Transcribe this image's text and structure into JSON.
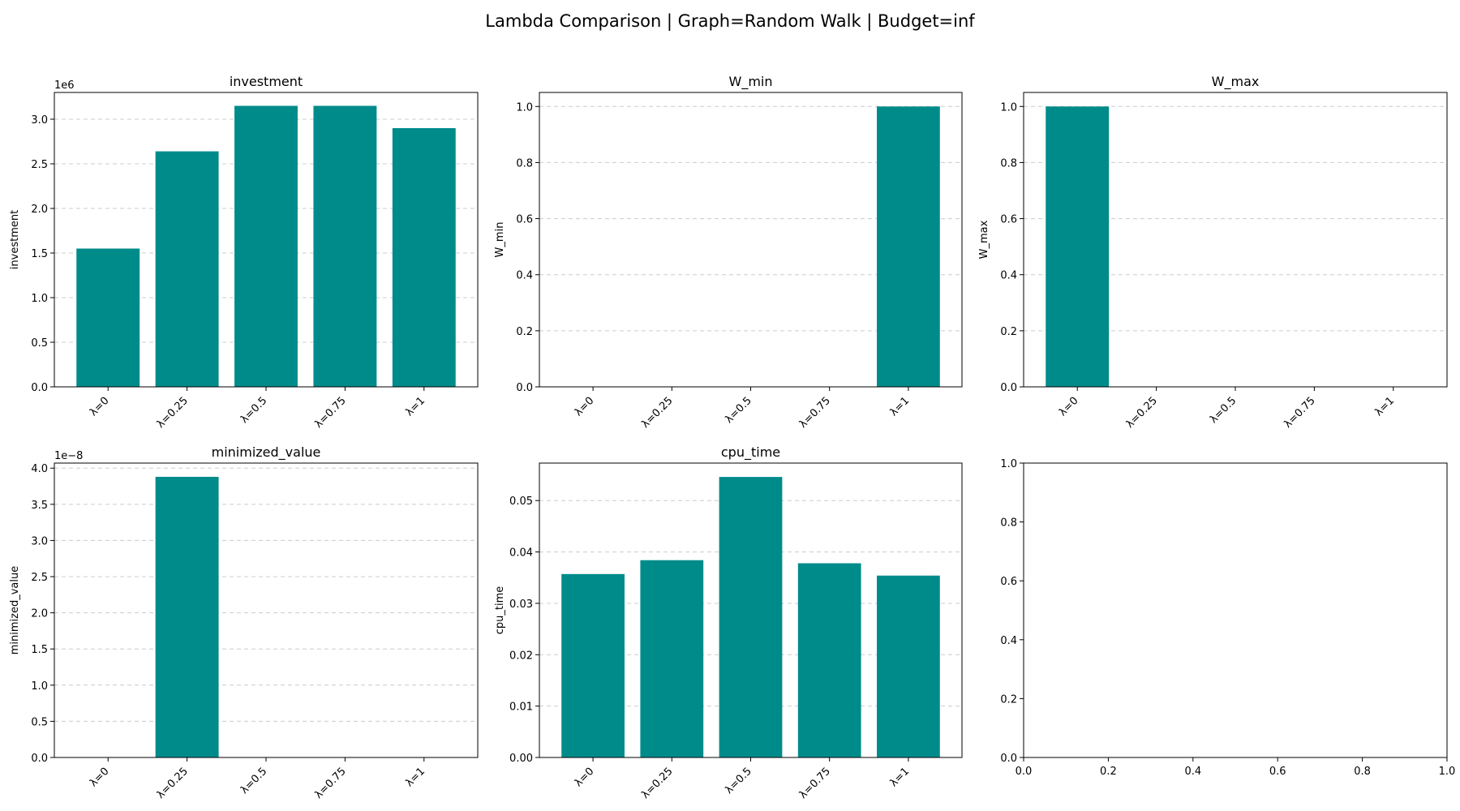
{
  "suptitle": "Lambda Comparison | Graph=Random Walk | Budget=inf",
  "colors": {
    "bar": "#008b8b",
    "grid": "#cccccc",
    "axis": "#000000"
  },
  "chart_data": [
    {
      "type": "bar",
      "title": "investment",
      "ylabel": "investment",
      "xlabel": "",
      "categories": [
        "λ=0",
        "λ=0.25",
        "λ=0.5",
        "λ=0.75",
        "λ=1"
      ],
      "values": [
        1550000,
        2640000,
        3150000,
        3150000,
        2900000
      ],
      "ylim": [
        0,
        3300000
      ],
      "yticks": [
        0,
        0.5,
        1.0,
        1.5,
        2.0,
        2.5,
        3.0
      ],
      "ytick_labels": [
        "0.0",
        "0.5",
        "1.0",
        "1.5",
        "2.0",
        "2.5",
        "3.0"
      ],
      "y_scale_label": "1e6",
      "y_multiplier": 1000000,
      "grid": "y-dashed"
    },
    {
      "type": "bar",
      "title": "W_min",
      "ylabel": "W_min",
      "xlabel": "",
      "categories": [
        "λ=0",
        "λ=0.25",
        "λ=0.5",
        "λ=0.75",
        "λ=1"
      ],
      "values": [
        0,
        0,
        0,
        0,
        1.0
      ],
      "ylim": [
        0,
        1.05
      ],
      "yticks": [
        0,
        0.2,
        0.4,
        0.6,
        0.8,
        1.0
      ],
      "ytick_labels": [
        "0.0",
        "0.2",
        "0.4",
        "0.6",
        "0.8",
        "1.0"
      ],
      "y_multiplier": 1,
      "grid": "y-dashed"
    },
    {
      "type": "bar",
      "title": "W_max",
      "ylabel": "W_max",
      "xlabel": "",
      "categories": [
        "λ=0",
        "λ=0.25",
        "λ=0.5",
        "λ=0.75",
        "λ=1"
      ],
      "values": [
        1.0,
        0,
        0,
        0,
        0
      ],
      "ylim": [
        0,
        1.05
      ],
      "yticks": [
        0,
        0.2,
        0.4,
        0.6,
        0.8,
        1.0
      ],
      "ytick_labels": [
        "0.0",
        "0.2",
        "0.4",
        "0.6",
        "0.8",
        "1.0"
      ],
      "y_multiplier": 1,
      "grid": "y-dashed"
    },
    {
      "type": "bar",
      "title": "minimized_value",
      "ylabel": "minimized_value",
      "xlabel": "",
      "categories": [
        "λ=0",
        "λ=0.25",
        "λ=0.5",
        "λ=0.75",
        "λ=1"
      ],
      "values": [
        0,
        3.88e-08,
        0,
        0,
        0
      ],
      "ylim": [
        0,
        4.07e-08
      ],
      "yticks": [
        0,
        0.5,
        1.0,
        1.5,
        2.0,
        2.5,
        3.0,
        3.5,
        4.0
      ],
      "ytick_labels": [
        "0.0",
        "0.5",
        "1.0",
        "1.5",
        "2.0",
        "2.5",
        "3.0",
        "3.5",
        "4.0"
      ],
      "y_scale_label": "1e−8",
      "y_multiplier": 1e-08,
      "grid": "y-dashed"
    },
    {
      "type": "bar",
      "title": "cpu_time",
      "ylabel": "cpu_time",
      "xlabel": "",
      "categories": [
        "λ=0",
        "λ=0.25",
        "λ=0.5",
        "λ=0.75",
        "λ=1"
      ],
      "values": [
        0.0357,
        0.0384,
        0.0546,
        0.0378,
        0.0354
      ],
      "ylim": [
        0,
        0.0573
      ],
      "yticks": [
        0,
        0.01,
        0.02,
        0.03,
        0.04,
        0.05
      ],
      "ytick_labels": [
        "0.00",
        "0.01",
        "0.02",
        "0.03",
        "0.04",
        "0.05"
      ],
      "y_multiplier": 1,
      "grid": "y-dashed"
    },
    {
      "type": "empty",
      "xlim": [
        0,
        1
      ],
      "ylim": [
        0,
        1
      ],
      "xtick_labels": [
        "0.0",
        "0.2",
        "0.4",
        "0.6",
        "0.8",
        "1.0"
      ],
      "ytick_labels": [
        "0.0",
        "0.2",
        "0.4",
        "0.6",
        "0.8",
        "1.0"
      ]
    }
  ]
}
